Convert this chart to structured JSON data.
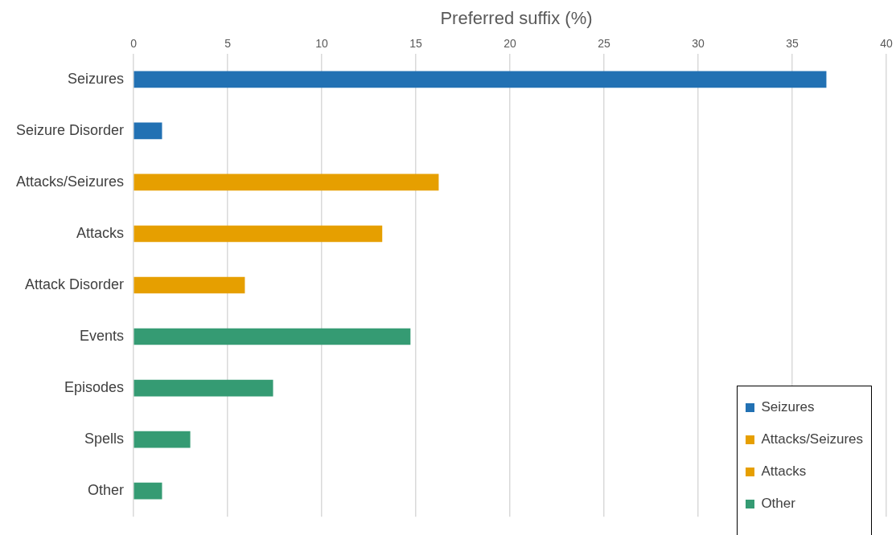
{
  "chart_data": {
    "type": "bar",
    "orientation": "horizontal",
    "title": "Preferred suffix (%)",
    "categories": [
      "Seizures",
      "Seizure Disorder",
      "Attacks/Seizures",
      "Attacks",
      "Attack Disorder",
      "Events",
      "Episodes",
      "Spells",
      "Other"
    ],
    "series": [
      {
        "name": "Seizures",
        "color": "#2271b3",
        "values": [
          36.8,
          1.5,
          null,
          null,
          null,
          null,
          null,
          null,
          null
        ]
      },
      {
        "name": "Attacks/Seizures",
        "color": "#e69f00",
        "values": [
          null,
          null,
          16.2,
          null,
          null,
          null,
          null,
          null,
          null
        ]
      },
      {
        "name": "Attacks",
        "color": "#e69f00",
        "values": [
          null,
          null,
          null,
          13.2,
          5.9,
          null,
          null,
          null,
          null
        ]
      },
      {
        "name": "Other",
        "color": "#359b73",
        "values": [
          null,
          null,
          null,
          null,
          null,
          14.7,
          7.4,
          3,
          1.5
        ]
      }
    ],
    "xlim": [
      0,
      40
    ],
    "xticks": [
      0,
      5,
      10,
      15,
      20,
      25,
      30,
      35,
      40
    ],
    "grid": "x",
    "legend": "bottom right"
  }
}
